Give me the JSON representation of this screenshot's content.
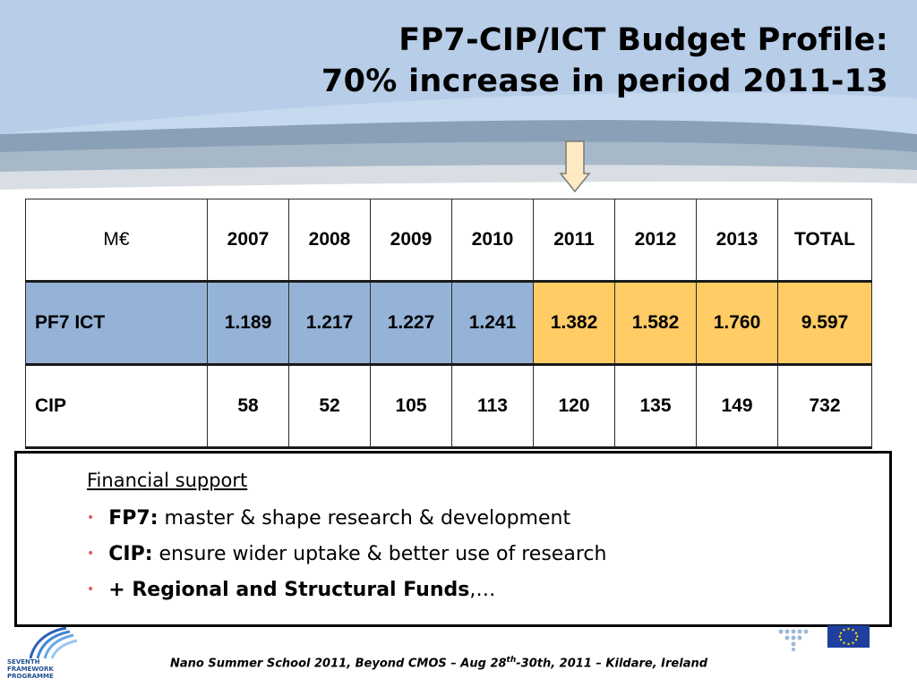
{
  "slide": {
    "title_line1": "FP7-CIP/ICT Budget Profile:",
    "title_line2": "70% increase in period 2011-13"
  },
  "table": {
    "header": [
      "M€",
      "2007",
      "2008",
      "2009",
      "2010",
      "2011",
      "2012",
      "2013",
      "TOTAL"
    ],
    "rows": [
      {
        "label": "PF7 ICT",
        "values": [
          "1.189",
          "1.217",
          "1.227",
          "1.241",
          "1.382",
          "1.582",
          "1.760",
          "9.597"
        ]
      },
      {
        "label": "CIP",
        "values": [
          "58",
          "52",
          "105",
          "113",
          "120",
          "135",
          "149",
          "732"
        ]
      }
    ],
    "colors": {
      "blue": "#95b3d7",
      "gold": "#ffcc66"
    }
  },
  "support": {
    "heading": "Financial support",
    "bullets": [
      {
        "bold": "FP7:",
        "text": " master & shape research &  development"
      },
      {
        "bold": "CIP:",
        "text": " ensure wider uptake & better use of research"
      },
      {
        "bold": "+ Regional and Structural Funds",
        "text": ",…"
      }
    ]
  },
  "footer": {
    "text_a": "Nano Summer School 2011, Beyond CMOS – Aug 28",
    "sup": "th",
    "text_b": "-30th, 2011 – Kildare, Ireland"
  },
  "logo": {
    "line1": "SEVENTH FRAMEWORK",
    "line2": "PROGRAMME"
  },
  "icons": [
    "down-arrow-icon",
    "seventh-framework-logo",
    "dots-logo",
    "eu-flag-icon"
  ]
}
